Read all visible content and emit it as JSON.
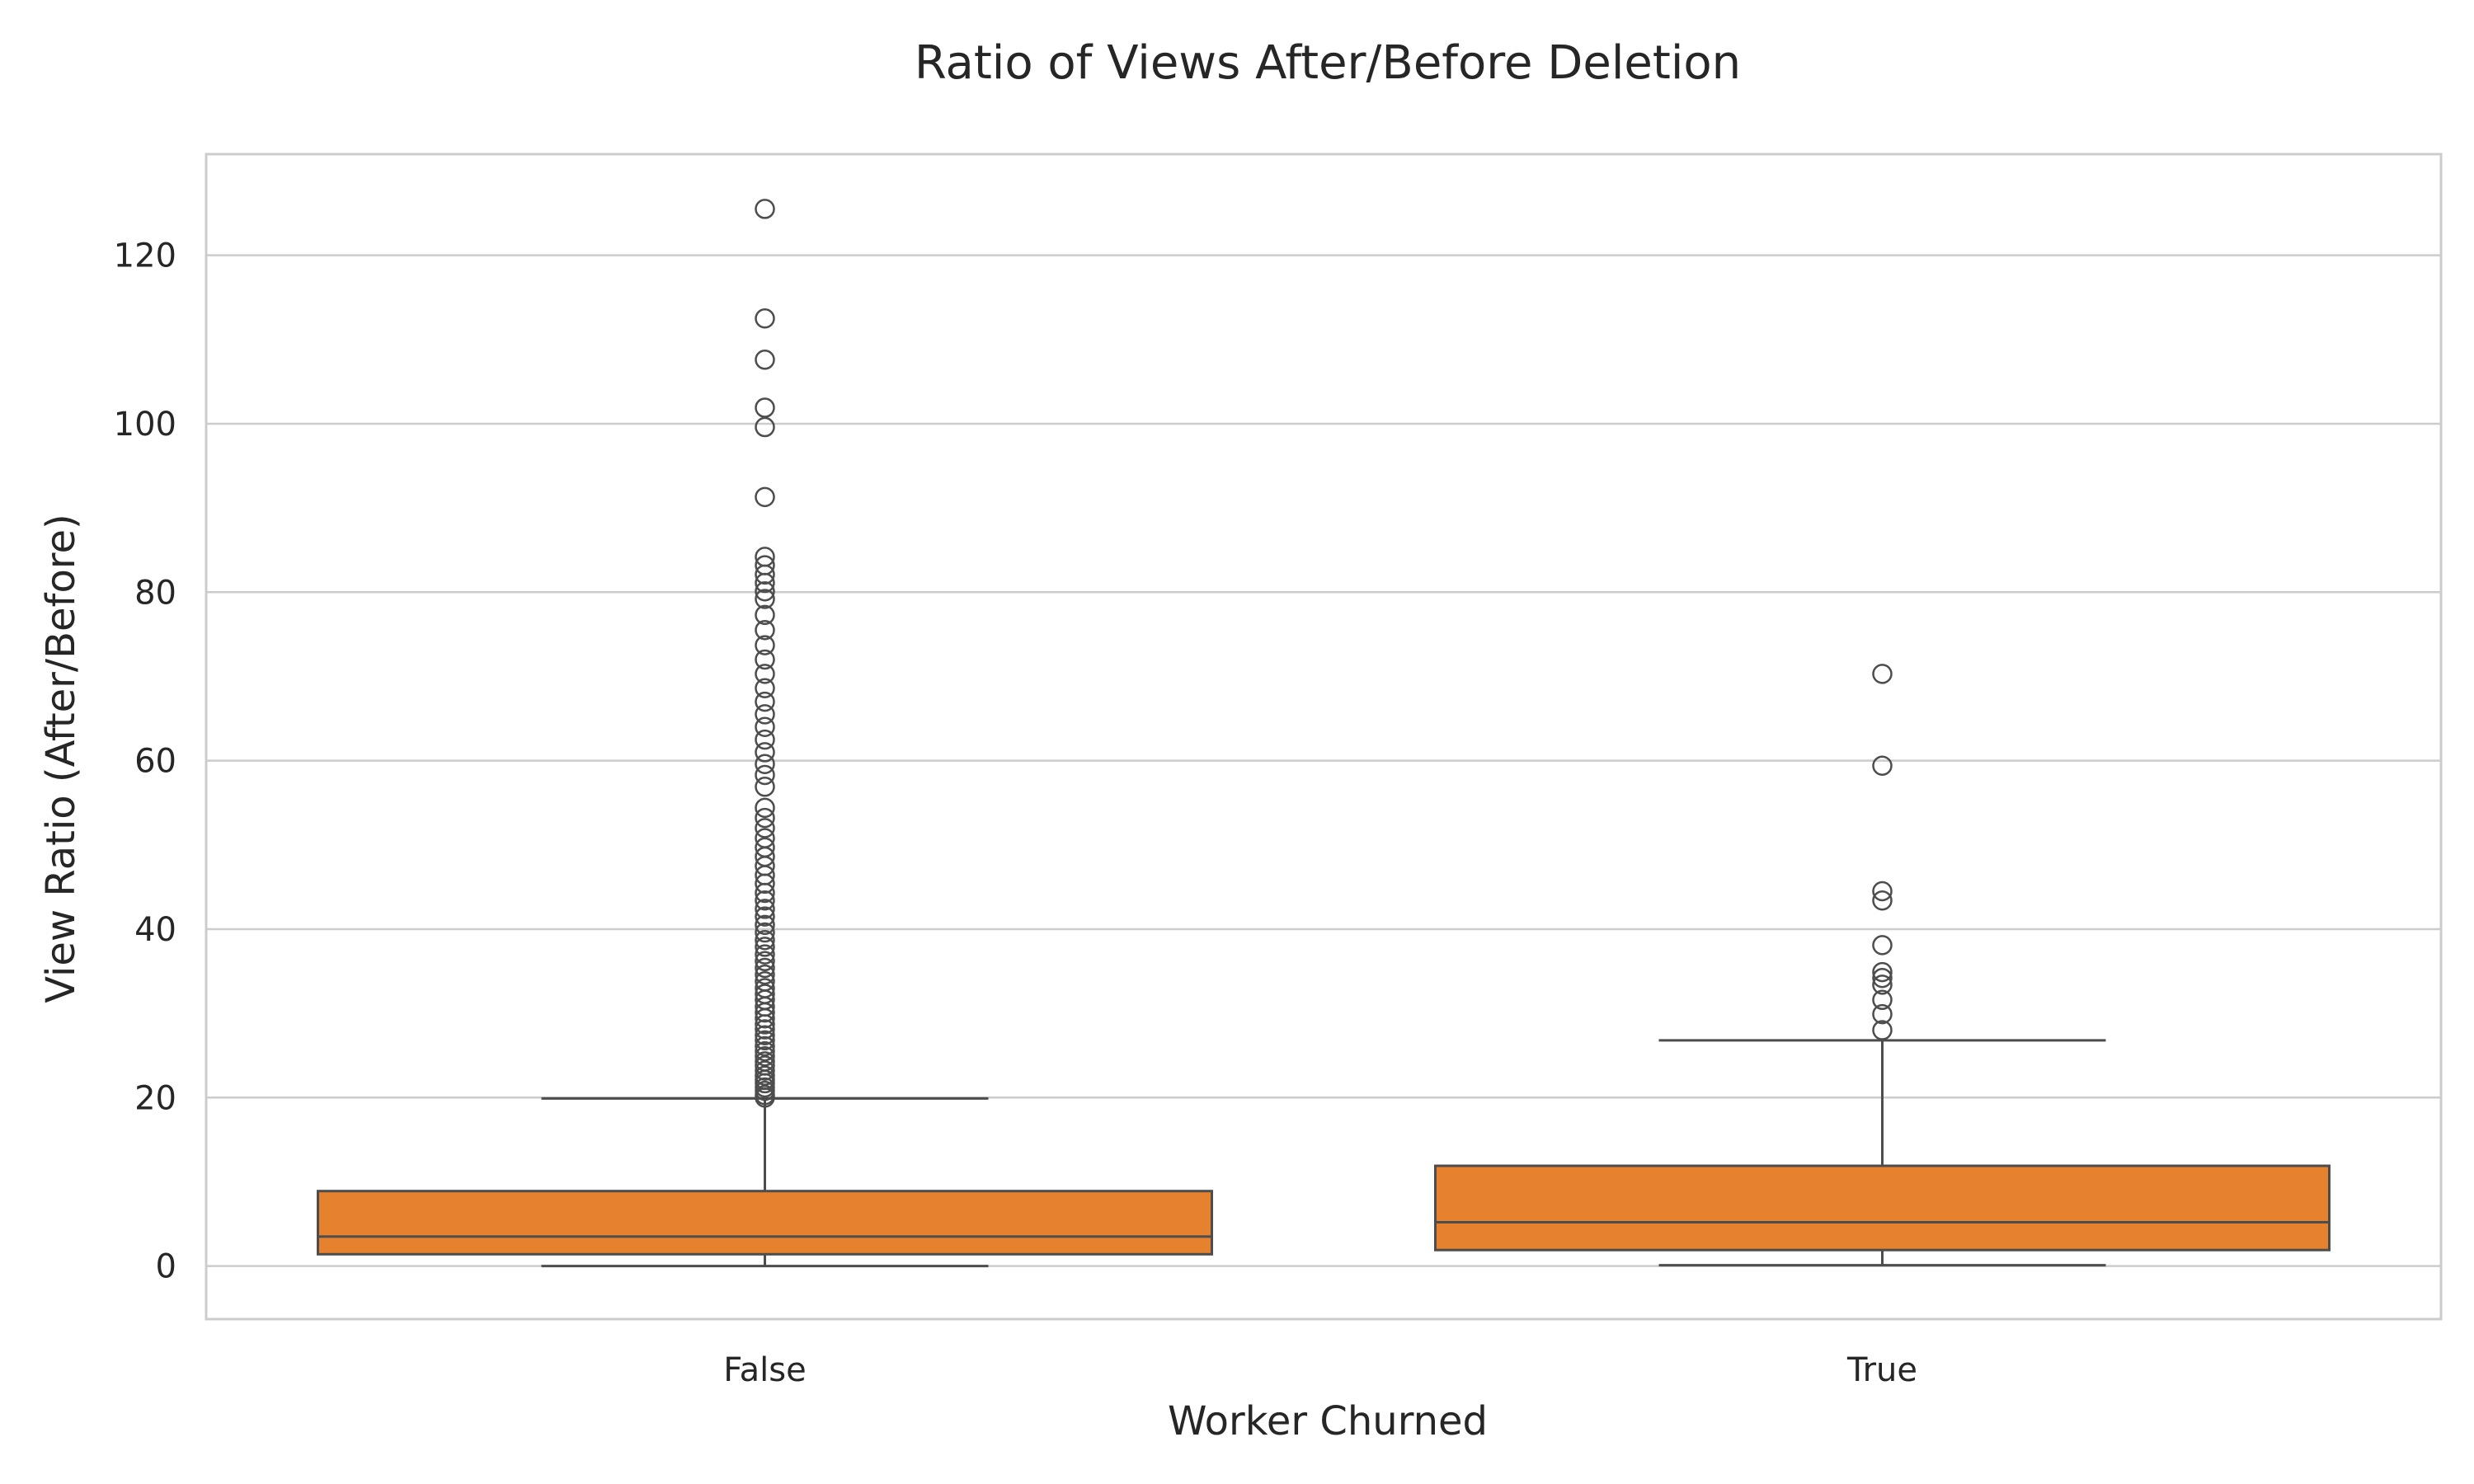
{
  "chart_data": {
    "type": "box",
    "title": "Ratio of Views After/Before Deletion",
    "xlabel": "Worker Churned",
    "ylabel": "View Ratio (After/Before)",
    "ylim": [
      -6.3,
      132
    ],
    "yticks": [
      0,
      20,
      40,
      60,
      80,
      100,
      120
    ],
    "grid": true,
    "box_color": "#e6812d",
    "line_color": "#4d4d4d",
    "categories": [
      "False",
      "True"
    ],
    "boxes": [
      {
        "category": "False",
        "whisker_low": 0.0,
        "q1": 1.4,
        "median": 3.5,
        "q3": 8.9,
        "whisker_high": 19.9,
        "outliers": [
          20.0,
          20.3,
          20.8,
          21.2,
          21.7,
          22.1,
          22.6,
          23.2,
          23.8,
          24.3,
          24.9,
          25.5,
          26.1,
          26.8,
          27.4,
          28.1,
          28.7,
          29.4,
          30.1,
          30.8,
          31.6,
          32.3,
          33.0,
          33.8,
          34.6,
          35.4,
          36.2,
          37.0,
          37.9,
          38.7,
          39.6,
          40.5,
          41.5,
          42.4,
          43.4,
          44.3,
          45.4,
          46.4,
          47.5,
          48.6,
          49.7,
          50.8,
          52.0,
          53.2,
          54.4,
          56.9,
          58.3,
          59.6,
          61.0,
          62.5,
          64.0,
          65.5,
          67.0,
          68.6,
          70.3,
          72.0,
          73.7,
          75.5,
          77.3,
          79.2,
          80.1,
          81.1,
          82.1,
          83.2,
          84.2,
          91.3,
          99.6,
          101.9,
          107.6,
          112.5,
          125.5
        ]
      },
      {
        "category": "True",
        "whisker_low": 0.1,
        "q1": 1.9,
        "median": 5.2,
        "q3": 11.9,
        "whisker_high": 26.8,
        "outliers": [
          28.0,
          29.9,
          31.6,
          33.4,
          34.2,
          34.9,
          38.1,
          43.4,
          44.5,
          59.4,
          70.3
        ]
      }
    ]
  }
}
